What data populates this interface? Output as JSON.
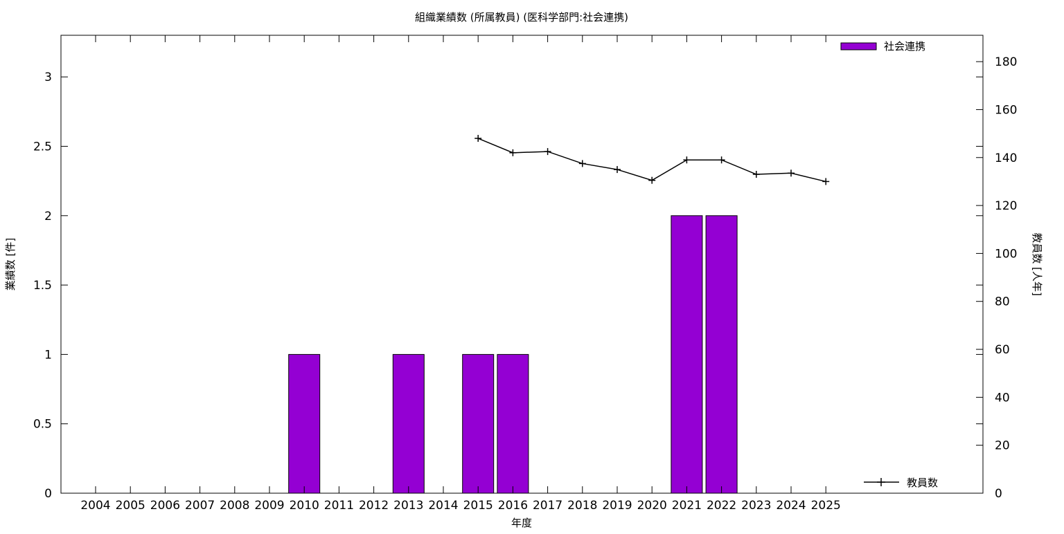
{
  "chart_data": {
    "type": "bar",
    "title": "組織業績数 (所属教員) (医科学部門:社会連携)",
    "xlabel": "年度",
    "ylabel": "業績数 [件]",
    "y2label": "教員数 [人年]",
    "categories": [
      "2004",
      "2005",
      "2006",
      "2007",
      "2008",
      "2009",
      "2010",
      "2011",
      "2012",
      "2013",
      "2014",
      "2015",
      "2016",
      "2017",
      "2018",
      "2019",
      "2020",
      "2021",
      "2022",
      "2023",
      "2024",
      "2025"
    ],
    "ylim": [
      0,
      3.3
    ],
    "y2lim": [
      0,
      191
    ],
    "yticks": [
      "0",
      "0.5",
      "1",
      "1.5",
      "2",
      "2.5",
      "3"
    ],
    "y2ticks": [
      "0",
      "20",
      "40",
      "60",
      "80",
      "100",
      "120",
      "140",
      "160",
      "180"
    ],
    "grid": false,
    "legend_placement": "top-right / bottom-right",
    "series": [
      {
        "name": "社会連携",
        "type": "bar",
        "axis": "left",
        "color": "#9400d3",
        "values": [
          0,
          0,
          0,
          0,
          0,
          0,
          1,
          0,
          0,
          1,
          0,
          1,
          1,
          0,
          0,
          0,
          0,
          2,
          2,
          0,
          0,
          0
        ]
      },
      {
        "name": "教員数",
        "type": "line",
        "axis": "right",
        "color": "#000000",
        "x": [
          "2015",
          "2016",
          "2017",
          "2018",
          "2019",
          "2020",
          "2021",
          "2022",
          "2023",
          "2024",
          "2025"
        ],
        "values": [
          148,
          142,
          142.5,
          137.5,
          135,
          130.5,
          139,
          139,
          133,
          133.5,
          130
        ]
      }
    ]
  }
}
